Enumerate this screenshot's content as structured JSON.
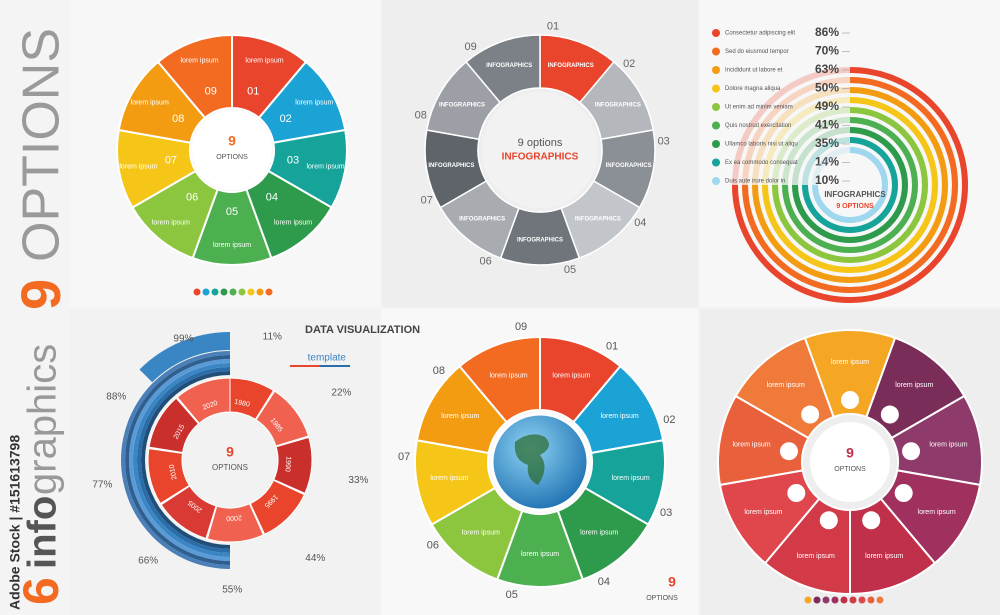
{
  "side": {
    "number": "9",
    "title": "OPTIONS",
    "count": "6",
    "info": "info",
    "graphics": "graphics",
    "credit": "Adobe Stock | #151613798"
  },
  "panel1": {
    "center_number": "9",
    "center_label": "OPTIONS",
    "segments": [
      {
        "number": "01",
        "label": "lorem ipsum"
      },
      {
        "number": "02",
        "label": "lorem ipsum"
      },
      {
        "number": "03",
        "label": "lorem ipsum"
      },
      {
        "number": "04",
        "label": "lorem ipsum"
      },
      {
        "number": "05",
        "label": "lorem ipsum"
      },
      {
        "number": "06",
        "label": "lorem ipsum"
      },
      {
        "number": "07",
        "label": "lorem ipsum"
      },
      {
        "number": "08",
        "label": "lorem ipsum"
      },
      {
        "number": "09",
        "label": "lorem ipsum"
      }
    ]
  },
  "panel2": {
    "center_title": "9 options",
    "center_label": "INFOGRAPHICS",
    "segments": [
      {
        "number": "01",
        "label": "INFOGRAPHICS"
      },
      {
        "number": "02",
        "label": "INFOGRAPHICS"
      },
      {
        "number": "03",
        "label": "INFOGRAPHICS"
      },
      {
        "number": "04",
        "label": "INFOGRAPHICS"
      },
      {
        "number": "05",
        "label": "INFOGRAPHICS"
      },
      {
        "number": "06",
        "label": "INFOGRAPHICS"
      },
      {
        "number": "07",
        "label": "INFOGRAPHICS"
      },
      {
        "number": "08",
        "label": "INFOGRAPHICS"
      },
      {
        "number": "09",
        "label": "INFOGRAPHICS"
      }
    ]
  },
  "panel3": {
    "title": "INFOGRAPHICS",
    "subtitle": "9 OPTIONS",
    "items": [
      {
        "label": "Consectetur adipiscing elit",
        "value": "86%"
      },
      {
        "label": "Sed do eiusmod tempor",
        "value": "70%"
      },
      {
        "label": "Incididunt ut labore et",
        "value": "63%"
      },
      {
        "label": "Dolore magna aliqua",
        "value": "50%"
      },
      {
        "label": "Ut enim ad minim veniam",
        "value": "49%"
      },
      {
        "label": "Quis nostrud exercitation",
        "value": "41%"
      },
      {
        "label": "Ullamco laboris nisi ut aliqu",
        "value": "35%"
      },
      {
        "label": "Ex ea commodo consequat",
        "value": "14%"
      },
      {
        "label": "Duis aute irure dolor in",
        "value": "10%"
      }
    ]
  },
  "panel4": {
    "title": "DATA VISUALIZATION",
    "subtitle": "template",
    "center_number": "9",
    "center_label": "OPTIONS",
    "percents": [
      "99%",
      "11%",
      "22%",
      "33%",
      "44%",
      "55%",
      "66%",
      "77%",
      "88%"
    ],
    "years": [
      "1980",
      "1985",
      "1990",
      "1995",
      "2000",
      "2005",
      "2010",
      "2015",
      "2020"
    ]
  },
  "panel5": {
    "center_number": "9",
    "center_label": "OPTIONS",
    "segments": [
      {
        "number": "01",
        "label": "lorem ipsum"
      },
      {
        "number": "02",
        "label": "lorem ipsum"
      },
      {
        "number": "03",
        "label": "lorem ipsum"
      },
      {
        "number": "04",
        "label": "lorem ipsum"
      },
      {
        "number": "05",
        "label": "lorem ipsum"
      },
      {
        "number": "06",
        "label": "lorem ipsum"
      },
      {
        "number": "07",
        "label": "lorem ipsum"
      },
      {
        "number": "08",
        "label": "lorem ipsum"
      },
      {
        "number": "09",
        "label": "lorem ipsum"
      }
    ]
  },
  "panel6": {
    "center_number": "9",
    "center_label": "OPTIONS",
    "segments": [
      "lorem ipsum",
      "lorem ipsum",
      "lorem ipsum",
      "lorem ipsum",
      "lorem ipsum",
      "lorem ipsum",
      "lorem ipsum",
      "lorem ipsum",
      "lorem ipsum"
    ]
  }
}
